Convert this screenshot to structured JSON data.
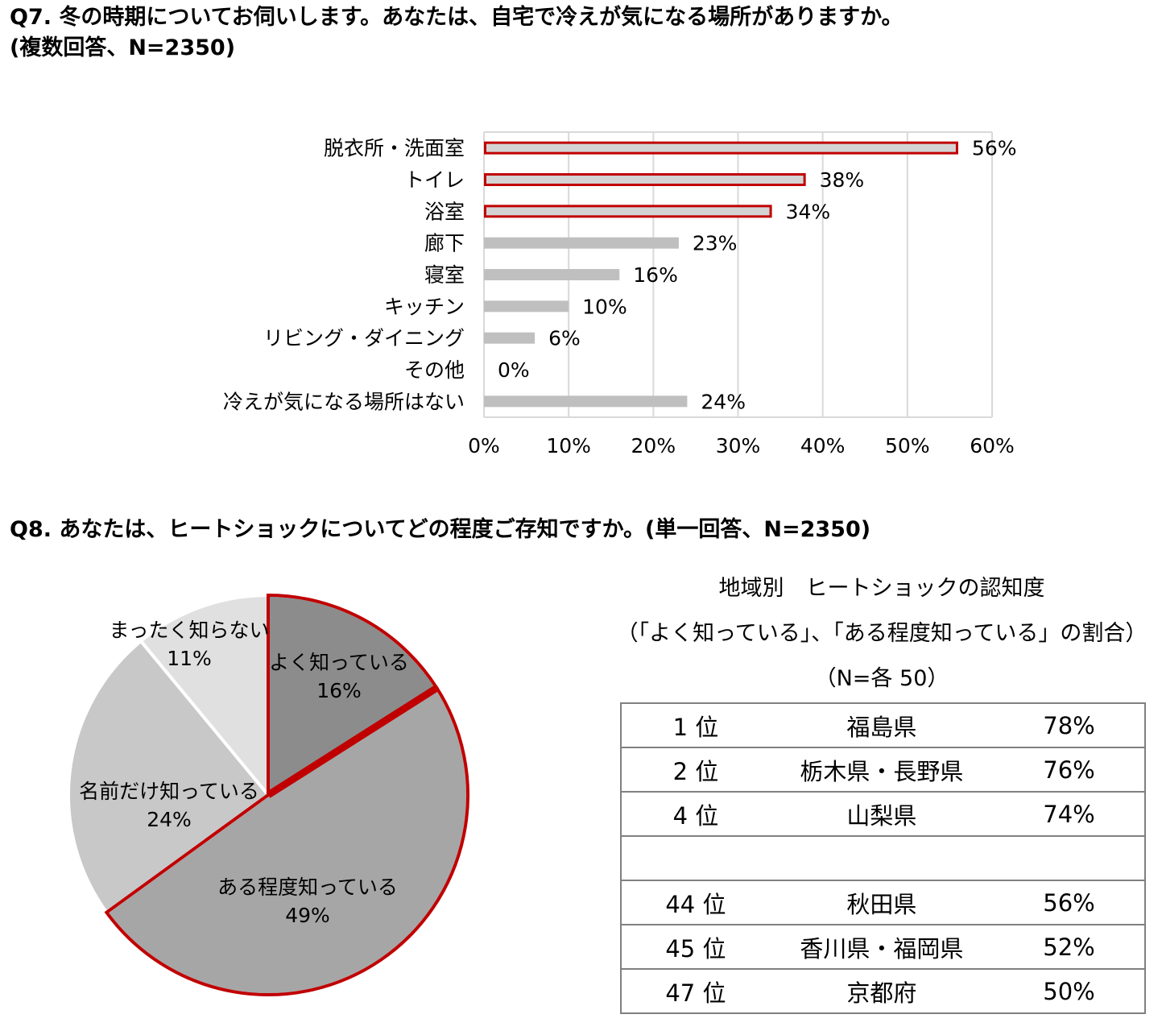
{
  "q7": {
    "title": "Q7.  冬の時期についてお伺いします。あなたは、自宅で冷えが気になる場所がありますか。",
    "subtitle": "(複数回答、N=2350)"
  },
  "q8": {
    "title": "Q8.  あなたは、ヒートショックについてどの程度ご存知ですか。(単一回答、N=2350)"
  },
  "colors": {
    "accent_red": "#c00000",
    "bar_highlight_fill": "#d3d3d3",
    "bar_gray": "#bfbfbf",
    "grid": "#d9d9d9",
    "pie_dark": "#8c8c8c",
    "pie_mid": "#a6a6a6",
    "pie_light": "#c8c8c8",
    "pie_lightest": "#e0e0e0"
  },
  "chart_data": [
    {
      "type": "bar",
      "orientation": "horizontal",
      "categories": [
        "脱衣所・洗面室",
        "トイレ",
        "浴室",
        "廊下",
        "寝室",
        "キッチン",
        "リビング・ダイニング",
        "その他",
        "冷えが気になる場所はない"
      ],
      "values": [
        56,
        38,
        34,
        23,
        16,
        10,
        6,
        0,
        24
      ],
      "value_labels": [
        "56%",
        "38%",
        "34%",
        "23%",
        "16%",
        "10%",
        "6%",
        "0%",
        "24%"
      ],
      "highlighted": [
        true,
        true,
        true,
        false,
        false,
        false,
        false,
        false,
        false
      ],
      "xlim": [
        0,
        60
      ],
      "xticks": [
        0,
        10,
        20,
        30,
        40,
        50,
        60
      ],
      "xtick_labels": [
        "0%",
        "10%",
        "20%",
        "30%",
        "40%",
        "50%",
        "60%"
      ],
      "grid": true
    },
    {
      "type": "pie",
      "labels": [
        "よく知っている",
        "ある程度知っている",
        "名前だけ知っている",
        "まったく知らない"
      ],
      "values": [
        16,
        49,
        24,
        11
      ],
      "value_labels": [
        "16%",
        "49%",
        "24%",
        "11%"
      ],
      "highlighted": [
        true,
        true,
        false,
        false
      ]
    }
  ],
  "regional": {
    "caption_line1": "地域別　ヒートショックの認知度",
    "caption_line2": "（「よく知っている」、「ある程度知っている」の割合）",
    "caption_line3": "（N=各 50）",
    "rows": [
      {
        "rank": "1 位",
        "pref": "福島県",
        "pct": "78%"
      },
      {
        "rank": "2 位",
        "pref": "栃木県・長野県",
        "pct": "76%"
      },
      {
        "rank": "4 位",
        "pref": "山梨県",
        "pct": "74%"
      },
      {
        "rank": "",
        "pref": "",
        "pct": ""
      },
      {
        "rank": "44 位",
        "pref": "秋田県",
        "pct": "56%"
      },
      {
        "rank": "45 位",
        "pref": "香川県・福岡県",
        "pct": "52%"
      },
      {
        "rank": "47 位",
        "pref": "京都府",
        "pct": "50%"
      }
    ]
  }
}
